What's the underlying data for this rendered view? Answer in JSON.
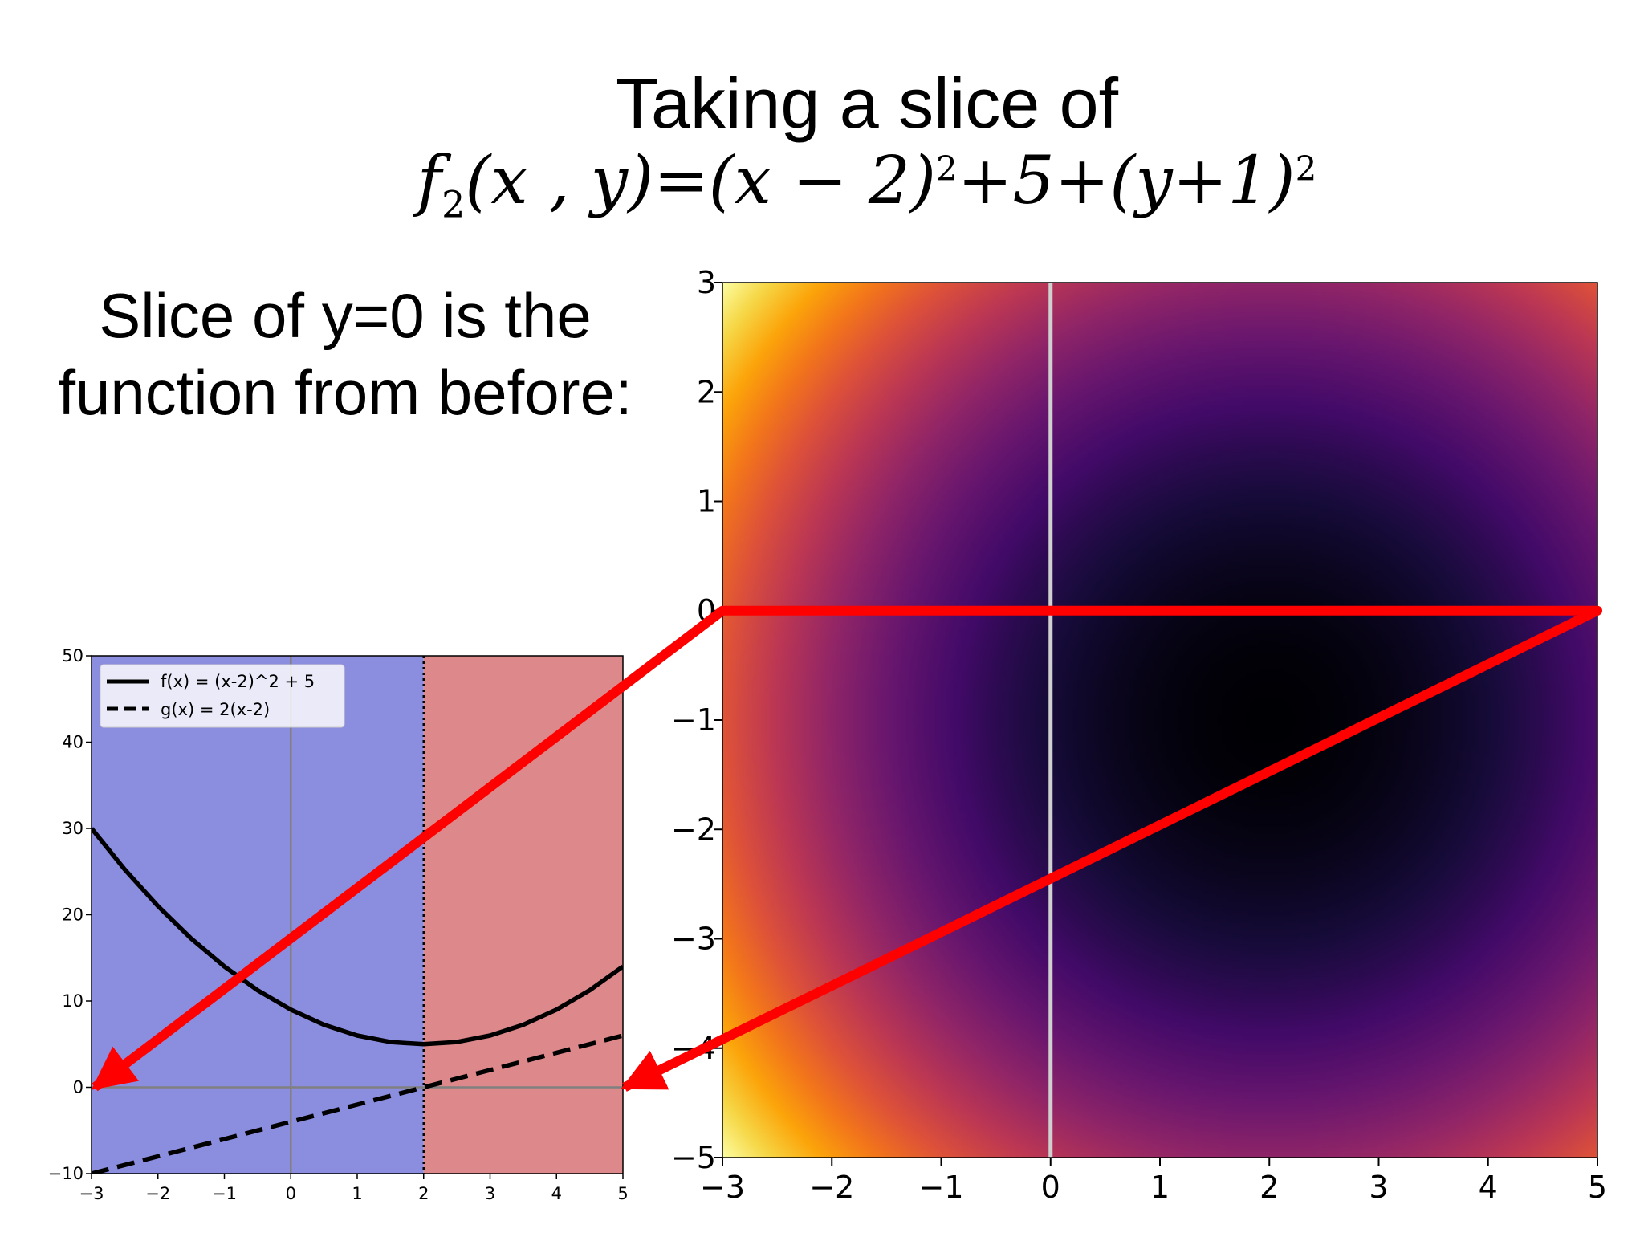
{
  "slide": {
    "title": "Taking a slice of",
    "formula": {
      "f": "f",
      "sub": "2",
      "args": "(x , y)",
      "eq": "=(x − 2)",
      "exp1": "2",
      "mid": "+5+(y+1)",
      "exp2": "2"
    },
    "subtitle_line1": "Slice of y=0 is the",
    "subtitle_line2": "function from before:"
  },
  "colors": {
    "left_region": "#8b8ddf",
    "right_region": "#dd888a",
    "arrow": "#ff0000",
    "axis_line": "#808080",
    "curve": "#000000",
    "slice_line": "#d0d0d0"
  },
  "chart_data": [
    {
      "type": "line",
      "xlim": [
        -3,
        5
      ],
      "ylim": [
        -10,
        50
      ],
      "xticks": [
        -3,
        -2,
        -1,
        0,
        1,
        2,
        3,
        4,
        5
      ],
      "yticks": [
        -10,
        0,
        10,
        20,
        30,
        40,
        50
      ],
      "xtick_labels": [
        "−3",
        "−2",
        "−1",
        "0",
        "1",
        "2",
        "3",
        "4",
        "5"
      ],
      "ytick_labels": [
        "−10",
        "0",
        "10",
        "20",
        "30",
        "40",
        "50"
      ],
      "regions": [
        {
          "from": -3,
          "to": 2,
          "color": "#8b8ddf"
        },
        {
          "from": 2,
          "to": 5,
          "color": "#dd888a"
        }
      ],
      "vline_dotted": 2,
      "series": [
        {
          "name": "f(x) = (x-2)^2 + 5",
          "style": "solid",
          "x": [
            -3,
            -2.5,
            -2,
            -1.5,
            -1,
            -0.5,
            0,
            0.5,
            1,
            1.5,
            2,
            2.5,
            3,
            3.5,
            4,
            4.5,
            5
          ],
          "y": [
            30,
            25.25,
            21,
            17.25,
            14,
            11.25,
            9,
            7.25,
            6,
            5.25,
            5,
            5.25,
            6,
            7.25,
            9,
            11.25,
            14
          ]
        },
        {
          "name": "g(x) = 2(x-2)",
          "style": "dashed",
          "x": [
            -3,
            5
          ],
          "y": [
            -10,
            6
          ]
        }
      ],
      "legend": "top-left",
      "grid": false
    },
    {
      "type": "heatmap",
      "function": "(x-2)^2 + 5 + (y+1)^2",
      "colormap": "inferno",
      "xlim": [
        -3,
        5
      ],
      "ylim": [
        -5,
        3
      ],
      "xticks": [
        -3,
        -2,
        -1,
        0,
        1,
        2,
        3,
        4,
        5
      ],
      "yticks": [
        -5,
        -4,
        -3,
        -2,
        -1,
        0,
        1,
        2,
        3
      ],
      "xtick_labels": [
        "−3",
        "−2",
        "−1",
        "0",
        "1",
        "2",
        "3",
        "4",
        "5"
      ],
      "ytick_labels": [
        "−5",
        "−4",
        "−3",
        "−2",
        "−1",
        "0",
        "1",
        "2",
        "3"
      ],
      "slice_y": 0,
      "vline_x": 0,
      "grid": false
    }
  ]
}
